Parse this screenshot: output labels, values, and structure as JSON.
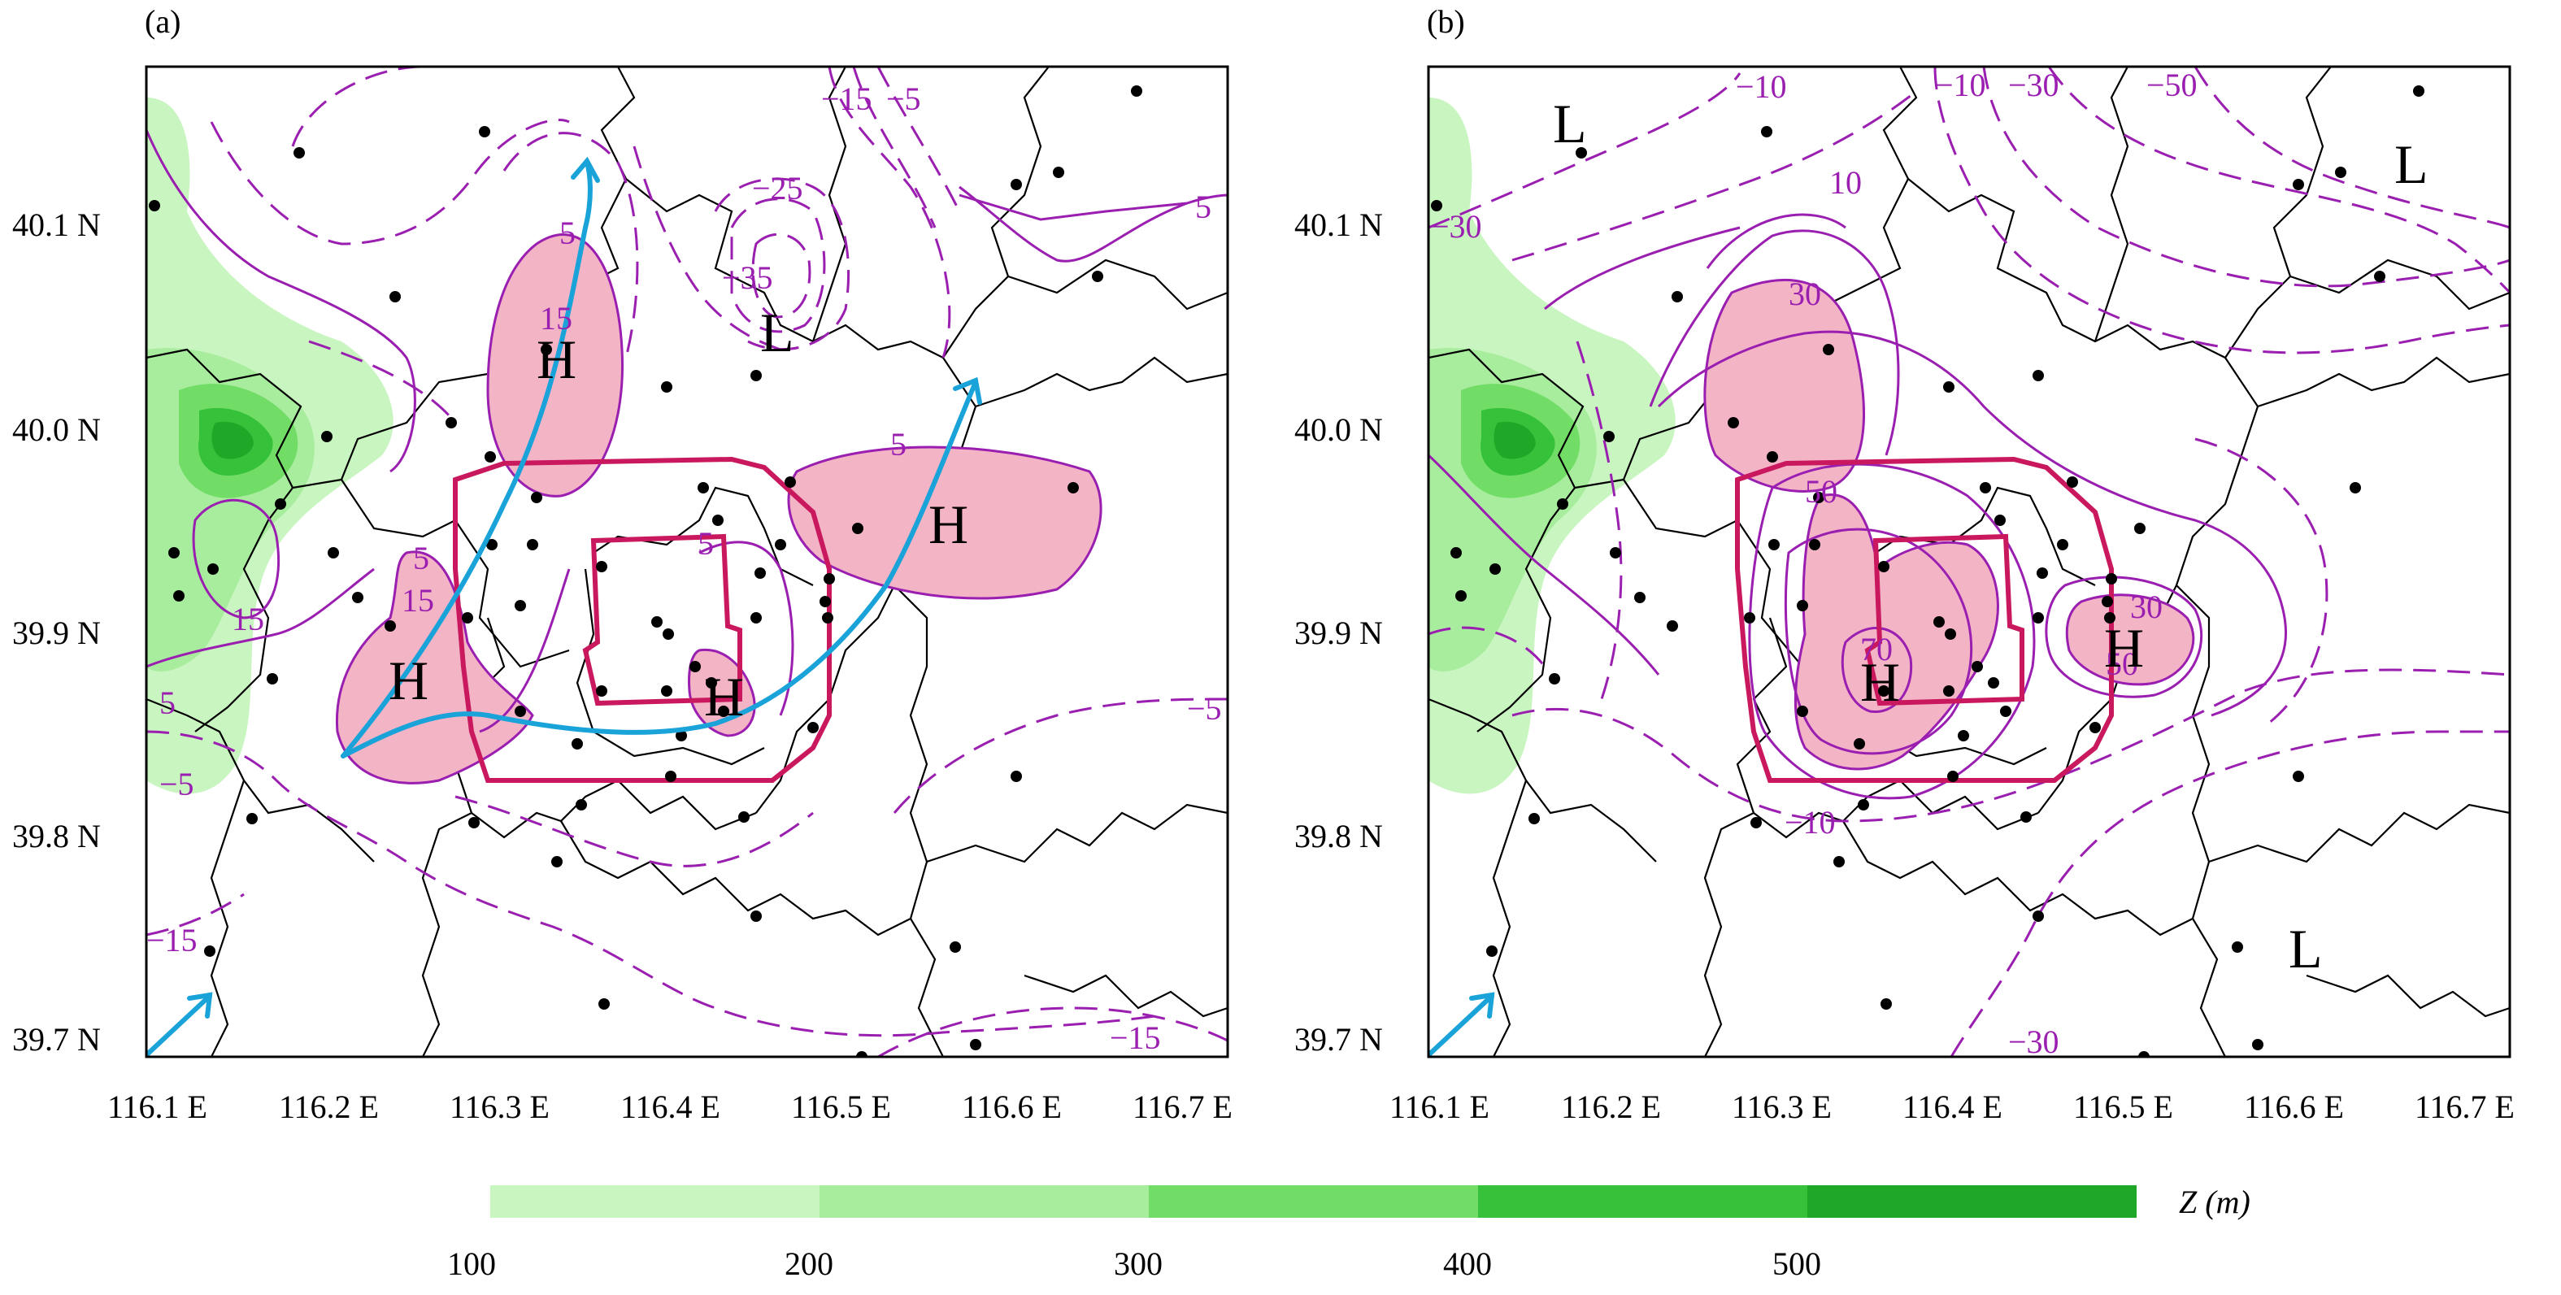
{
  "panels": [
    {
      "id": "a",
      "label": "(a)"
    },
    {
      "id": "b",
      "label": "(b)"
    }
  ],
  "axes": {
    "y_ticks": [
      "40.1 N",
      "40.0 N",
      "39.9 N",
      "39.8 N",
      "39.7 N"
    ],
    "x_ticks": [
      "116.1 E",
      "116.2 E",
      "116.3 E",
      "116.4 E",
      "116.5 E",
      "116.6 E",
      "116.7 E"
    ]
  },
  "panel_a": {
    "contour_labels": [
      "−15",
      "−5",
      "−25",
      "−35",
      "5",
      "5",
      "15",
      "5",
      "5",
      "15",
      "5",
      "15",
      "−5",
      "5",
      "−5",
      "−15",
      "−15"
    ],
    "centers": [
      "H",
      "H",
      "H",
      "H",
      "L"
    ]
  },
  "panel_b": {
    "contour_labels": [
      "−10",
      "−10",
      "−30",
      "−50",
      "10",
      "−30",
      "30",
      "50",
      "70",
      "30",
      "50",
      "−10",
      "−30"
    ],
    "centers": [
      "L",
      "L",
      "H",
      "H",
      "L"
    ]
  },
  "legend": {
    "title": "Z (m)",
    "ticks": [
      "100",
      "200",
      "300",
      "400",
      "500"
    ],
    "colors": [
      "#c9f5c0",
      "#a8ec9e",
      "#72dd66",
      "#35c23a",
      "#1fa827"
    ]
  }
}
